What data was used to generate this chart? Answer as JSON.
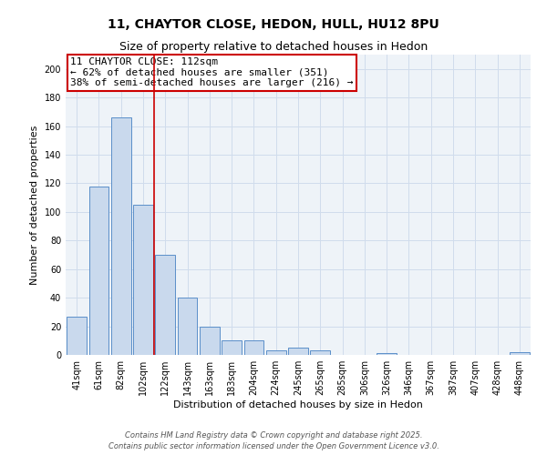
{
  "title": "11, CHAYTOR CLOSE, HEDON, HULL, HU12 8PU",
  "subtitle": "Size of property relative to detached houses in Hedon",
  "xlabel": "Distribution of detached houses by size in Hedon",
  "ylabel": "Number of detached properties",
  "bar_labels": [
    "41sqm",
    "61sqm",
    "82sqm",
    "102sqm",
    "122sqm",
    "143sqm",
    "163sqm",
    "183sqm",
    "204sqm",
    "224sqm",
    "245sqm",
    "265sqm",
    "285sqm",
    "306sqm",
    "326sqm",
    "346sqm",
    "367sqm",
    "387sqm",
    "407sqm",
    "428sqm",
    "448sqm"
  ],
  "bar_values": [
    27,
    118,
    166,
    105,
    70,
    40,
    20,
    10,
    10,
    3,
    5,
    3,
    0,
    0,
    1,
    0,
    0,
    0,
    0,
    0,
    2
  ],
  "bar_color": "#c9d9ed",
  "bar_edge_color": "#5b8fc9",
  "ylim": [
    0,
    210
  ],
  "yticks": [
    0,
    20,
    40,
    60,
    80,
    100,
    120,
    140,
    160,
    180,
    200
  ],
  "vline_color": "#cc0000",
  "vline_x_index": 3.5,
  "annotation_title": "11 CHAYTOR CLOSE: 112sqm",
  "annotation_line1": "← 62% of detached houses are smaller (351)",
  "annotation_line2": "38% of semi-detached houses are larger (216) →",
  "footer_line1": "Contains HM Land Registry data © Crown copyright and database right 2025.",
  "footer_line2": "Contains public sector information licensed under the Open Government Licence v3.0.",
  "grid_color": "#d0dcec",
  "background_color": "#eef3f8",
  "title_fontsize": 10,
  "subtitle_fontsize": 9,
  "axis_label_fontsize": 8,
  "tick_fontsize": 7,
  "annotation_fontsize": 8,
  "footer_fontsize": 6
}
